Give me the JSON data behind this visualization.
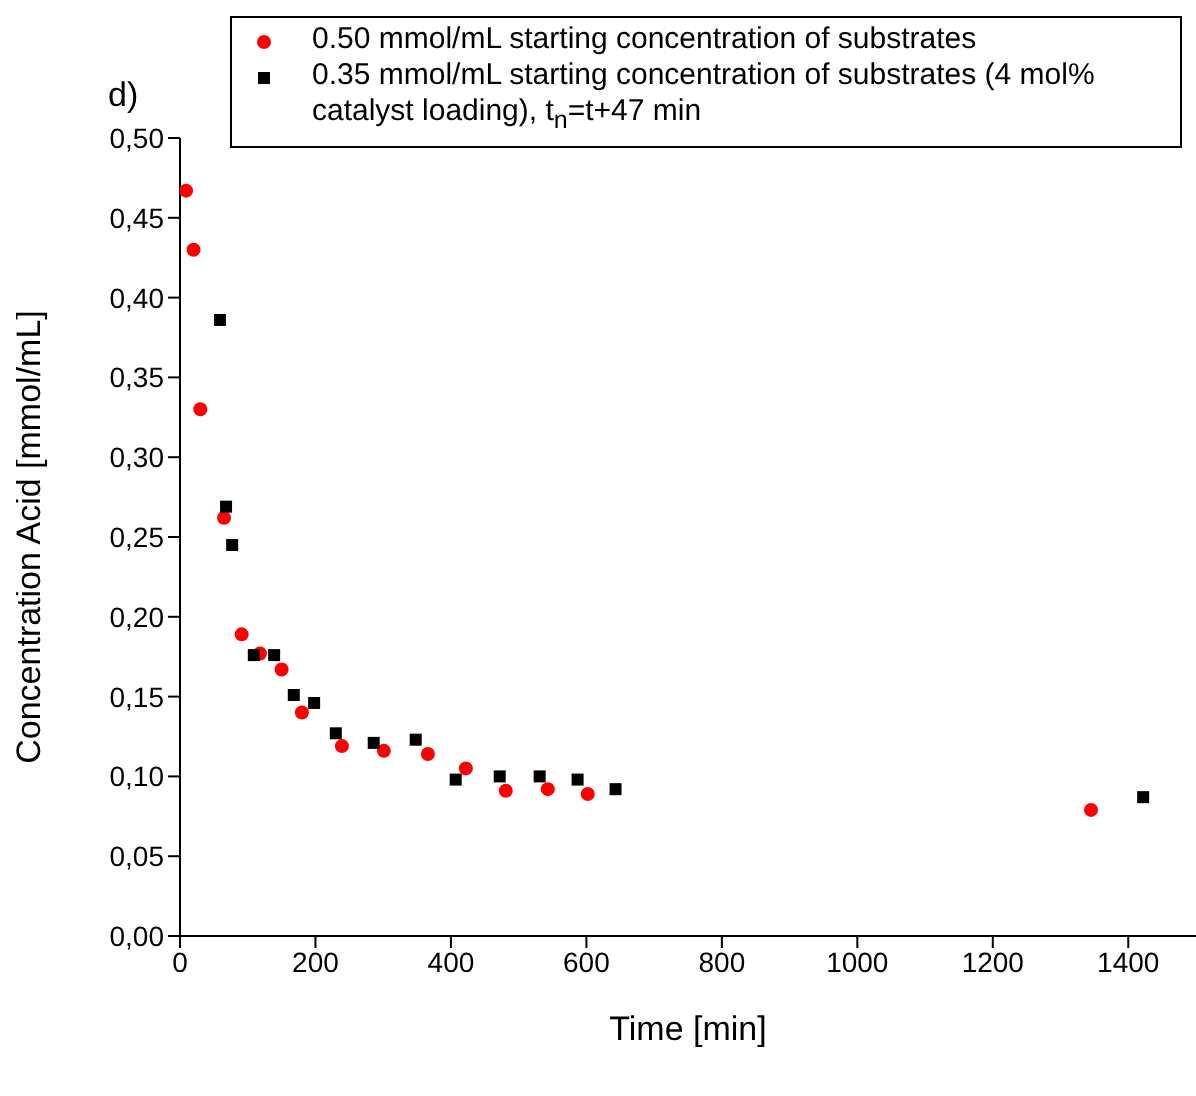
{
  "chart_data": {
    "type": "scatter",
    "xlabel": "Time [min]",
    "ylabel": "Concentration Acid [mmol/mL]",
    "annotations": [
      "d)"
    ],
    "xlim": [
      0,
      1500
    ],
    "xticks": [
      0,
      200,
      400,
      600,
      800,
      1000,
      1200,
      1400
    ],
    "ylim": [
      0,
      0.5
    ],
    "yticks": [
      {
        "value": 0,
        "label": "0,00"
      },
      {
        "value": 0.05,
        "label": "0,05"
      },
      {
        "value": 0.1,
        "label": "0,10"
      },
      {
        "value": 0.15,
        "label": "0,15"
      },
      {
        "value": 0.2,
        "label": "0,20"
      },
      {
        "value": 0.25,
        "label": "0,25"
      },
      {
        "value": 0.3,
        "label": "0,30"
      },
      {
        "value": 0.35,
        "label": "0,35"
      },
      {
        "value": 0.4,
        "label": "0,40"
      },
      {
        "value": 0.45,
        "label": "0,45"
      },
      {
        "value": 0.5,
        "label": "0,50"
      }
    ],
    "grid": false,
    "legend": "top",
    "series": [
      {
        "name": "0.50 mmol/mL starting concentration of substrates",
        "color": "#ff0000",
        "marker": "circle",
        "x": [
          9,
          20,
          30,
          65,
          91,
          118,
          150,
          180,
          239,
          301,
          366,
          422,
          481,
          543,
          602,
          1345
        ],
        "values": [
          0.467,
          0.43,
          0.33,
          0.262,
          0.189,
          0.177,
          0.167,
          0.14,
          0.119,
          0.116,
          0.114,
          0.105,
          0.091,
          0.092,
          0.089,
          0.079
        ]
      },
      {
        "name": "0.35 mmol/mL starting concentration of substrates (4 mol% catalyst loading), t$_{n}$=t+47 min",
        "color": "#000000",
        "marker": "square",
        "x": [
          59,
          68,
          77,
          109,
          139,
          168,
          198,
          230,
          286,
          348,
          407,
          472,
          531,
          587,
          643,
          1422
        ],
        "values": [
          0.386,
          0.269,
          0.245,
          0.176,
          0.176,
          0.151,
          0.146,
          0.127,
          0.121,
          0.123,
          0.098,
          0.1,
          0.1,
          0.098,
          0.092,
          0.087
        ]
      }
    ]
  }
}
